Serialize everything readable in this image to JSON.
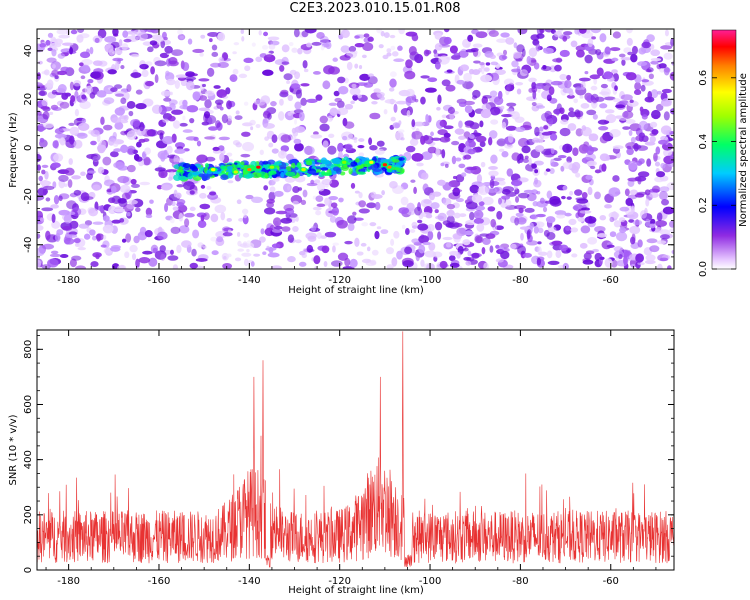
{
  "title": "C2E3.2023.010.15.01.R08",
  "chart_data": [
    {
      "type": "heatmap",
      "xlabel": "Height of straight line (km)",
      "ylabel": "Frequency (Hz)",
      "xlim": [
        -187,
        -46
      ],
      "ylim": [
        -50,
        49
      ],
      "x_ticks": [
        -180,
        -160,
        -140,
        -120,
        -100,
        -80,
        -60
      ],
      "y_ticks": [
        -40,
        -20,
        0,
        20,
        40
      ],
      "colorbar": {
        "label": "Normalized spectral amplitude",
        "range": [
          0,
          0.75
        ],
        "ticks": [
          0.0,
          0.2,
          0.4,
          0.6
        ],
        "tick_labels": [
          "0.0",
          "0.2",
          "0.4",
          "0.6"
        ]
      },
      "signal_band": {
        "x_range": [
          -156,
          -106
        ],
        "freq_start": -10,
        "freq_end": -7
      }
    },
    {
      "type": "line",
      "xlabel": "Height of straight line (km)",
      "ylabel": "SNR (10 * v/v)",
      "xlim": [
        -187,
        -46
      ],
      "ylim": [
        0,
        870
      ],
      "x_ticks": [
        -180,
        -160,
        -140,
        -120,
        -100,
        -80,
        -60
      ],
      "y_ticks": [
        0,
        200,
        400,
        600,
        800
      ],
      "line_color": "#e83232",
      "baseline": 120,
      "peaks": [
        {
          "x": -139,
          "y": 700
        },
        {
          "x": -137,
          "y": 760
        },
        {
          "x": -111,
          "y": 700
        },
        {
          "x": -106,
          "y": 865
        }
      ]
    }
  ]
}
